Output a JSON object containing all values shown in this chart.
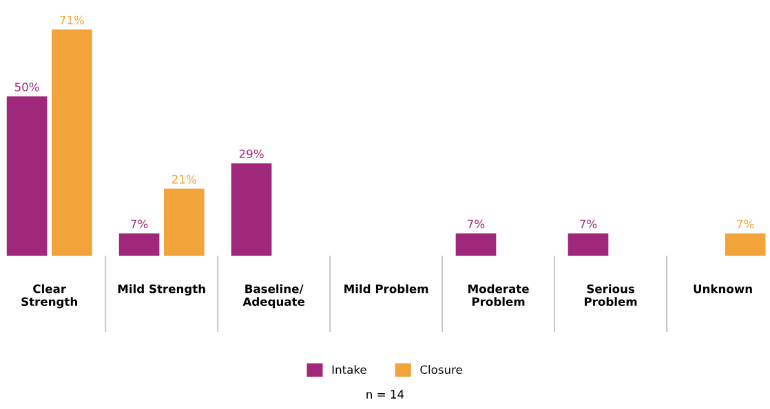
{
  "chart_data": {
    "type": "bar",
    "categories": [
      "Clear Strength",
      "Mild Strength",
      "Baseline/ Adequate",
      "Mild Problem",
      "Moderate Problem",
      "Serious Problem",
      "Unknown"
    ],
    "series": [
      {
        "name": "Intake",
        "color": "#a0287a",
        "values": [
          50,
          7,
          29,
          null,
          7,
          7,
          null
        ],
        "value_labels": [
          "50%",
          "7%",
          "29%",
          null,
          "7%",
          "7%",
          null
        ]
      },
      {
        "name": "Closure",
        "color": "#f2a33a",
        "values": [
          71,
          21,
          null,
          null,
          null,
          null,
          7
        ],
        "value_labels": [
          "71%",
          "21%",
          null,
          null,
          null,
          null,
          "7%"
        ]
      }
    ],
    "legend": "bottom",
    "grid": false,
    "annotations": [
      "n = 14"
    ]
  }
}
